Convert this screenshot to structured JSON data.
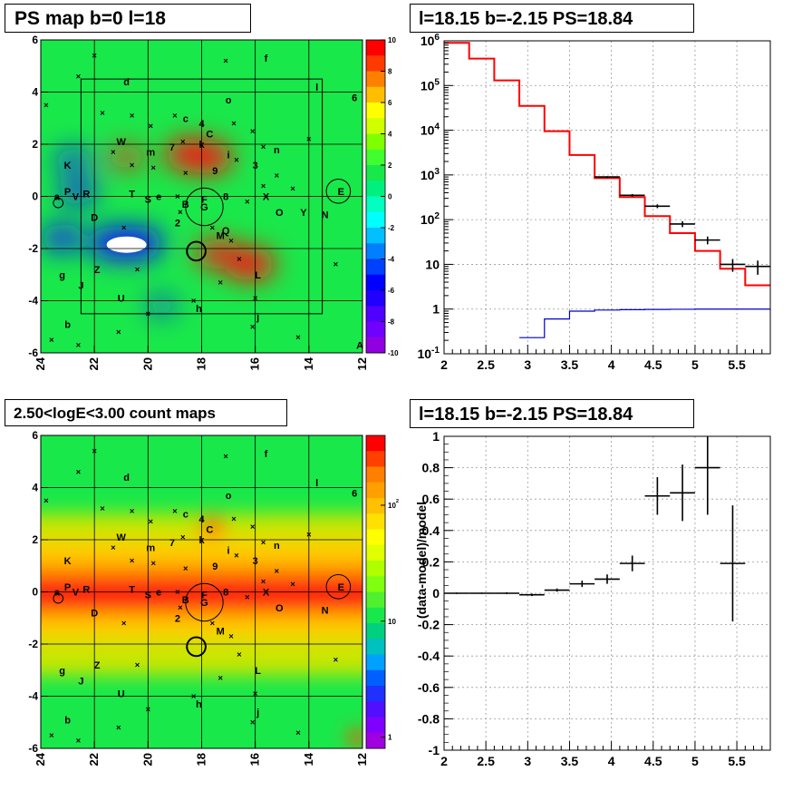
{
  "panels": {
    "ps_map": {
      "title": "PS map b=0 l=18"
    },
    "spectrum": {
      "title": "l=18.15 b=-2.15 PS=18.84"
    },
    "count_map": {
      "title": "2.50<logE<3.00 count maps"
    },
    "residual": {
      "title": "l=18.15 b=-2.15 PS=18.84"
    }
  },
  "chart_data": [
    {
      "type": "heatmap",
      "title": "PS map b=0 l=18",
      "x_axis": {
        "range": [
          24,
          12
        ],
        "ticks": [
          "24",
          "22",
          "20",
          "18",
          "16",
          "14",
          "12"
        ]
      },
      "y_axis": {
        "range": [
          -6,
          6
        ],
        "ticks": [
          "-6",
          "-4",
          "-2",
          "0",
          "2",
          "4",
          "6"
        ]
      },
      "colorbar": {
        "range": [
          -10,
          10
        ],
        "ticks": [
          "-10",
          "-8",
          "-6",
          "-4",
          "-2",
          "0",
          "2",
          "4",
          "6",
          "8",
          "10"
        ]
      },
      "colors": {
        "negative": "#1010ff",
        "zero": "#19e84a",
        "positive": "#ff1010"
      },
      "blobs": [
        {
          "l": 18.4,
          "b": 1.6,
          "value": 10
        },
        {
          "l": 17.8,
          "b": 1.5,
          "value": 10
        },
        {
          "l": 16.2,
          "b": -2.6,
          "value": 10
        },
        {
          "l": 17.4,
          "b": -2.2,
          "value": 8
        },
        {
          "l": 20.8,
          "b": 1.5,
          "value": 5
        },
        {
          "l": 21.0,
          "b": -2.0,
          "value": 3
        },
        {
          "l": 20.4,
          "b": -1.8,
          "value": -10
        },
        {
          "l": 21.2,
          "b": -1.8,
          "value": -10
        },
        {
          "l": 23.2,
          "b": -1.6,
          "value": -7
        },
        {
          "l": 22.6,
          "b": 0.2,
          "value": -6
        },
        {
          "l": 22.8,
          "b": 1.4,
          "value": -5
        },
        {
          "l": 19.5,
          "b": -4.2,
          "value": -3
        }
      ]
    },
    {
      "type": "line",
      "title": "l=18.15 b=-2.15 PS=18.84",
      "x_axis": {
        "range": [
          2,
          5.9
        ],
        "ticks": [
          "2",
          "2.5",
          "3",
          "3.5",
          "4",
          "4.5",
          "5",
          "5.5"
        ]
      },
      "y_axis": {
        "scale": "log",
        "range": [
          0.1,
          1000000
        ],
        "ticks": [
          "10^-1",
          "1",
          "10",
          "10^2",
          "10^3",
          "10^4",
          "10^5",
          "10^6"
        ]
      },
      "grid": true,
      "series": [
        {
          "kind": "model",
          "color": "#ff0000",
          "edges": [
            2,
            2.3,
            2.6,
            2.9,
            3.2,
            3.5,
            3.8,
            4.1,
            4.4,
            4.7,
            5.0,
            5.3,
            5.6,
            5.9
          ],
          "values": [
            900000,
            400000,
            130000,
            35000,
            9500,
            2800,
            850,
            320,
            120,
            50,
            20,
            8,
            3.4
          ]
        },
        {
          "kind": "source",
          "color": "#0000cc",
          "edges": [
            2.9,
            3.2,
            3.5,
            3.8,
            4.1,
            4.4,
            4.7,
            5.0,
            5.3,
            5.6,
            5.9
          ],
          "values": [
            0.23,
            0.6,
            0.9,
            0.95,
            0.97,
            0.98,
            0.99,
            1.0,
            1.0,
            1.0
          ]
        },
        {
          "kind": "data",
          "color": "#000000",
          "x": [
            3.95,
            4.25,
            4.55,
            4.85,
            5.15,
            5.45,
            5.75
          ],
          "y": [
            900,
            350,
            200,
            80,
            35,
            10,
            9
          ],
          "xerr": 0.15,
          "yerr_frac": [
            0.05,
            0.07,
            0.1,
            0.15,
            0.2,
            0.32,
            0.35
          ]
        }
      ]
    },
    {
      "type": "heatmap",
      "title": "2.50<logE<3.00 count maps",
      "x_axis": {
        "range": [
          24,
          12
        ],
        "ticks": [
          "24",
          "22",
          "20",
          "18",
          "16",
          "14",
          "12"
        ]
      },
      "y_axis": {
        "range": [
          -6,
          6
        ],
        "ticks": [
          "-6",
          "-4",
          "-2",
          "0",
          "2",
          "4",
          "6"
        ]
      },
      "colorbar": {
        "scale": "log",
        "range": [
          0.8,
          400
        ],
        "ticks": [
          "1",
          "10",
          "10^2"
        ]
      },
      "colors": {
        "low": "#19e84a",
        "mid": "#ffcc00",
        "high": "#ff1010"
      }
    },
    {
      "type": "scatter",
      "title": "l=18.15 b=-2.15 PS=18.84",
      "x_axis": {
        "range": [
          2,
          5.9
        ],
        "ticks": [
          "2",
          "2.5",
          "3",
          "3.5",
          "4",
          "4.5",
          "5",
          "5.5"
        ]
      },
      "y_axis": {
        "label": "(data-model)/model",
        "range": [
          -1,
          1
        ],
        "ticks": [
          "-1",
          "-0.8",
          "-0.6",
          "-0.4",
          "-0.2",
          "0",
          "0.2",
          "0.4",
          "0.6",
          "0.8",
          "1"
        ]
      },
      "grid": true,
      "x": [
        2.15,
        2.45,
        2.75,
        3.05,
        3.35,
        3.65,
        3.95,
        4.25,
        4.55,
        4.85,
        5.15,
        5.45
      ],
      "y": [
        0.0,
        0.0,
        0.0,
        -0.01,
        0.02,
        0.06,
        0.09,
        0.19,
        0.62,
        0.64,
        0.8,
        0.19
      ],
      "xerr": 0.15,
      "yerr": [
        0.005,
        0.005,
        0.006,
        0.008,
        0.01,
        0.02,
        0.03,
        0.05,
        0.12,
        0.18,
        0.3,
        0.37
      ]
    }
  ],
  "source_labels": [
    {
      "t": "a",
      "l": 23.4,
      "b": 0.0
    },
    {
      "t": "b",
      "l": 23.0,
      "b": -4.9
    },
    {
      "t": "c",
      "l": 18.6,
      "b": 3.0
    },
    {
      "t": "d",
      "l": 20.8,
      "b": 4.4
    },
    {
      "t": "e",
      "l": 19.6,
      "b": 0.0
    },
    {
      "t": "f",
      "l": 15.6,
      "b": 5.3
    },
    {
      "t": "g",
      "l": 23.2,
      "b": -3.0
    },
    {
      "t": "h",
      "l": 18.1,
      "b": -4.3
    },
    {
      "t": "i",
      "l": 17.0,
      "b": 1.6
    },
    {
      "t": "j",
      "l": 15.9,
      "b": -4.6
    },
    {
      "t": "k",
      "l": 18.0,
      "b": 2.0
    },
    {
      "t": "l",
      "l": 13.7,
      "b": 4.2
    },
    {
      "t": "m",
      "l": 19.9,
      "b": 1.7
    },
    {
      "t": "n",
      "l": 15.2,
      "b": 1.8
    },
    {
      "t": "o",
      "l": 17.0,
      "b": 3.7
    },
    {
      "t": "A",
      "l": 12.1,
      "b": -5.7
    },
    {
      "t": "B",
      "l": 18.6,
      "b": -0.3
    },
    {
      "t": "C",
      "l": 17.7,
      "b": 2.4
    },
    {
      "t": "D",
      "l": 22.0,
      "b": -0.8
    },
    {
      "t": "E",
      "l": 12.8,
      "b": 0.2
    },
    {
      "t": "F",
      "l": 17.9,
      "b": -0.1
    },
    {
      "t": "G",
      "l": 17.9,
      "b": -0.4
    },
    {
      "t": "J",
      "l": 22.5,
      "b": -3.4
    },
    {
      "t": "K",
      "l": 23.0,
      "b": 1.2
    },
    {
      "t": "L",
      "l": 15.9,
      "b": -3.0
    },
    {
      "t": "M",
      "l": 17.3,
      "b": -1.5
    },
    {
      "t": "N",
      "l": 13.4,
      "b": -0.7
    },
    {
      "t": "O",
      "l": 15.1,
      "b": -0.6
    },
    {
      "t": "P",
      "l": 23.0,
      "b": 0.2
    },
    {
      "t": "Q",
      "l": 17.1,
      "b": -1.3
    },
    {
      "t": "R",
      "l": 22.3,
      "b": 0.1
    },
    {
      "t": "S",
      "l": 20.0,
      "b": -0.1
    },
    {
      "t": "T",
      "l": 20.6,
      "b": 0.1
    },
    {
      "t": "U",
      "l": 21.0,
      "b": -3.9
    },
    {
      "t": "V",
      "l": 22.7,
      "b": 0.0
    },
    {
      "t": "W",
      "l": 21.0,
      "b": 2.1
    },
    {
      "t": "X",
      "l": 15.6,
      "b": 0.0
    },
    {
      "t": "Y",
      "l": 14.2,
      "b": -0.6
    },
    {
      "t": "Z",
      "l": 21.9,
      "b": -2.8
    },
    {
      "t": "2",
      "l": 18.9,
      "b": -1.0
    },
    {
      "t": "3",
      "l": 16.0,
      "b": 1.2
    },
    {
      "t": "4",
      "l": 18.0,
      "b": 2.8
    },
    {
      "t": "6",
      "l": 12.3,
      "b": 3.8
    },
    {
      "t": "7",
      "l": 19.1,
      "b": 1.9
    },
    {
      "t": "8",
      "l": 17.1,
      "b": 0.0
    },
    {
      "t": "9",
      "l": 17.5,
      "b": 1.0
    }
  ],
  "count_map_labels_excluded": [
    "A",
    "Q",
    "Y"
  ],
  "cross_markers": [
    {
      "l": 22.0,
      "b": 5.4
    },
    {
      "l": 22.6,
      "b": 4.6
    },
    {
      "l": 17.1,
      "b": 5.2
    },
    {
      "l": 21.7,
      "b": 3.2
    },
    {
      "l": 20.6,
      "b": 3.1
    },
    {
      "l": 19.9,
      "b": 2.7
    },
    {
      "l": 19.0,
      "b": 3.1
    },
    {
      "l": 18.7,
      "b": 2.1
    },
    {
      "l": 16.8,
      "b": 2.8
    },
    {
      "l": 15.7,
      "b": 1.9
    },
    {
      "l": 21.3,
      "b": 1.7
    },
    {
      "l": 20.6,
      "b": 1.2
    },
    {
      "l": 19.8,
      "b": 1.1
    },
    {
      "l": 18.6,
      "b": 0.9
    },
    {
      "l": 16.7,
      "b": 1.4
    },
    {
      "l": 16.1,
      "b": 2.5
    },
    {
      "l": 14.0,
      "b": 2.2
    },
    {
      "l": 15.2,
      "b": 0.8
    },
    {
      "l": 15.7,
      "b": 0.4
    },
    {
      "l": 16.3,
      "b": -0.2
    },
    {
      "l": 14.6,
      "b": 0.3
    },
    {
      "l": 18.9,
      "b": 0.0
    },
    {
      "l": 20.9,
      "b": -1.2
    },
    {
      "l": 18.8,
      "b": -0.6
    },
    {
      "l": 17.6,
      "b": -1.2
    },
    {
      "l": 16.9,
      "b": -1.7
    },
    {
      "l": 16.6,
      "b": -2.4
    },
    {
      "l": 17.3,
      "b": -3.3
    },
    {
      "l": 18.3,
      "b": -4.0
    },
    {
      "l": 16.1,
      "b": -5.0
    },
    {
      "l": 16.0,
      "b": -3.9
    },
    {
      "l": 21.1,
      "b": -5.2
    },
    {
      "l": 22.6,
      "b": -5.7
    },
    {
      "l": 23.6,
      "b": -5.5
    },
    {
      "l": 20.0,
      "b": -4.5
    },
    {
      "l": 14.4,
      "b": -5.4
    },
    {
      "l": 13.0,
      "b": -2.6
    },
    {
      "l": 20.4,
      "b": -2.8
    },
    {
      "l": 23.8,
      "b": 3.5
    }
  ],
  "rois": [
    {
      "l": 18.2,
      "b": -2.1,
      "r": 0.35,
      "thick": true
    },
    {
      "l": 17.9,
      "b": -0.4,
      "r": 0.7,
      "thick": false
    },
    {
      "l": 12.9,
      "b": 0.2,
      "r": 0.45,
      "thick": false
    },
    {
      "l": 23.35,
      "b": -0.25,
      "r": 0.18,
      "thick": false
    }
  ],
  "box": {
    "l1": 22.5,
    "l2": 13.5,
    "b1": -4.5,
    "b2": 4.5
  }
}
